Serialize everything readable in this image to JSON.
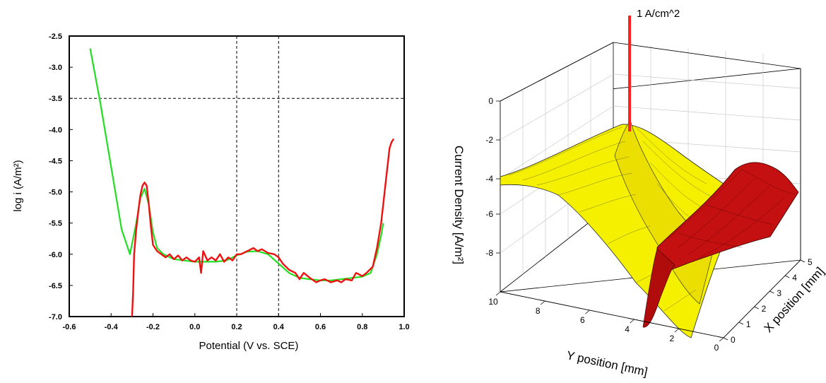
{
  "chart_data": [
    {
      "type": "line",
      "xlabel": "Potential (V vs. SCE)",
      "ylabel": "log i (A/m²)",
      "xlim": [
        -0.6,
        1.0
      ],
      "ylim": [
        -7.0,
        -2.5
      ],
      "xticks": [
        "-0.6",
        "-0.4",
        "-0.2",
        "0.0",
        "0.2",
        "0.4",
        "0.6",
        "0.8",
        "1.0"
      ],
      "yticks": [
        "-2.5",
        "-3.0",
        "-3.5",
        "-4.0",
        "-4.5",
        "-5.0",
        "-5.5",
        "-6.0",
        "-6.5",
        "-7.0"
      ],
      "reference_lines": {
        "x": [
          0.2,
          0.4
        ],
        "y": [
          -3.5
        ]
      },
      "series": [
        {
          "color": "#22dd22",
          "x": [
            -0.5,
            -0.45,
            -0.4,
            -0.35,
            -0.31,
            -0.28,
            -0.26,
            -0.24,
            -0.22,
            -0.2,
            -0.18,
            -0.15,
            -0.1,
            -0.05,
            0.0,
            0.05,
            0.1,
            0.15,
            0.2,
            0.25,
            0.3,
            0.35,
            0.4,
            0.45,
            0.5,
            0.55,
            0.6,
            0.65,
            0.7,
            0.75,
            0.8,
            0.84,
            0.87,
            0.89,
            0.9
          ],
          "y": [
            -2.7,
            -3.6,
            -4.6,
            -5.6,
            -6.0,
            -5.5,
            -5.1,
            -4.95,
            -5.2,
            -5.65,
            -5.9,
            -6.0,
            -6.08,
            -6.1,
            -6.12,
            -6.12,
            -6.12,
            -6.1,
            -6.02,
            -5.96,
            -5.95,
            -6.0,
            -6.15,
            -6.3,
            -6.38,
            -6.4,
            -6.42,
            -6.42,
            -6.4,
            -6.38,
            -6.36,
            -6.3,
            -6.0,
            -5.7,
            -5.5
          ]
        },
        {
          "color": "#ee1111",
          "x": [
            -0.3,
            -0.295,
            -0.29,
            -0.28,
            -0.27,
            -0.26,
            -0.25,
            -0.24,
            -0.23,
            -0.22,
            -0.21,
            -0.2,
            -0.18,
            -0.16,
            -0.14,
            -0.12,
            -0.1,
            -0.08,
            -0.06,
            -0.04,
            -0.02,
            0.0,
            0.02,
            0.03,
            0.04,
            0.06,
            0.08,
            0.1,
            0.12,
            0.14,
            0.16,
            0.18,
            0.2,
            0.22,
            0.25,
            0.28,
            0.3,
            0.32,
            0.35,
            0.38,
            0.4,
            0.42,
            0.45,
            0.48,
            0.5,
            0.52,
            0.55,
            0.58,
            0.6,
            0.62,
            0.65,
            0.68,
            0.7,
            0.72,
            0.75,
            0.77,
            0.8,
            0.82,
            0.85,
            0.87,
            0.89,
            0.9,
            0.91,
            0.92,
            0.93,
            0.94,
            0.95
          ],
          "y": [
            -7.0,
            -6.6,
            -6.0,
            -5.6,
            -5.3,
            -5.05,
            -4.9,
            -4.85,
            -4.9,
            -5.2,
            -5.55,
            -5.85,
            -5.95,
            -6.0,
            -6.05,
            -6.0,
            -6.08,
            -6.02,
            -6.1,
            -6.05,
            -6.1,
            -6.12,
            -6.05,
            -6.3,
            -5.95,
            -6.1,
            -6.05,
            -6.1,
            -6.0,
            -6.12,
            -6.05,
            -6.1,
            -6.0,
            -6.0,
            -5.95,
            -5.9,
            -5.95,
            -5.92,
            -5.98,
            -6.0,
            -6.05,
            -6.15,
            -6.25,
            -6.3,
            -6.4,
            -6.3,
            -6.38,
            -6.45,
            -6.42,
            -6.4,
            -6.45,
            -6.42,
            -6.45,
            -6.4,
            -6.42,
            -6.3,
            -6.35,
            -6.3,
            -6.2,
            -5.9,
            -5.5,
            -5.2,
            -4.9,
            -4.6,
            -4.3,
            -4.2,
            -4.15
          ]
        }
      ]
    },
    {
      "type": "surface",
      "annotation": "1 A/cm^2",
      "zlabel": "Current Density [A/m²]",
      "ylabel": "Y position [mm]",
      "xlabel": "X position [mm]",
      "zticks": [
        "0",
        "-2",
        "-4",
        "-6",
        "-8"
      ],
      "yticks": [
        "10",
        "8",
        "6",
        "4",
        "2",
        "0"
      ],
      "xticks": [
        "0",
        "1",
        "2",
        "3",
        "4",
        "5"
      ],
      "colors": {
        "surface": "#f5f000",
        "second_surface": "#cc1010",
        "spike": "#ff2020"
      }
    }
  ]
}
